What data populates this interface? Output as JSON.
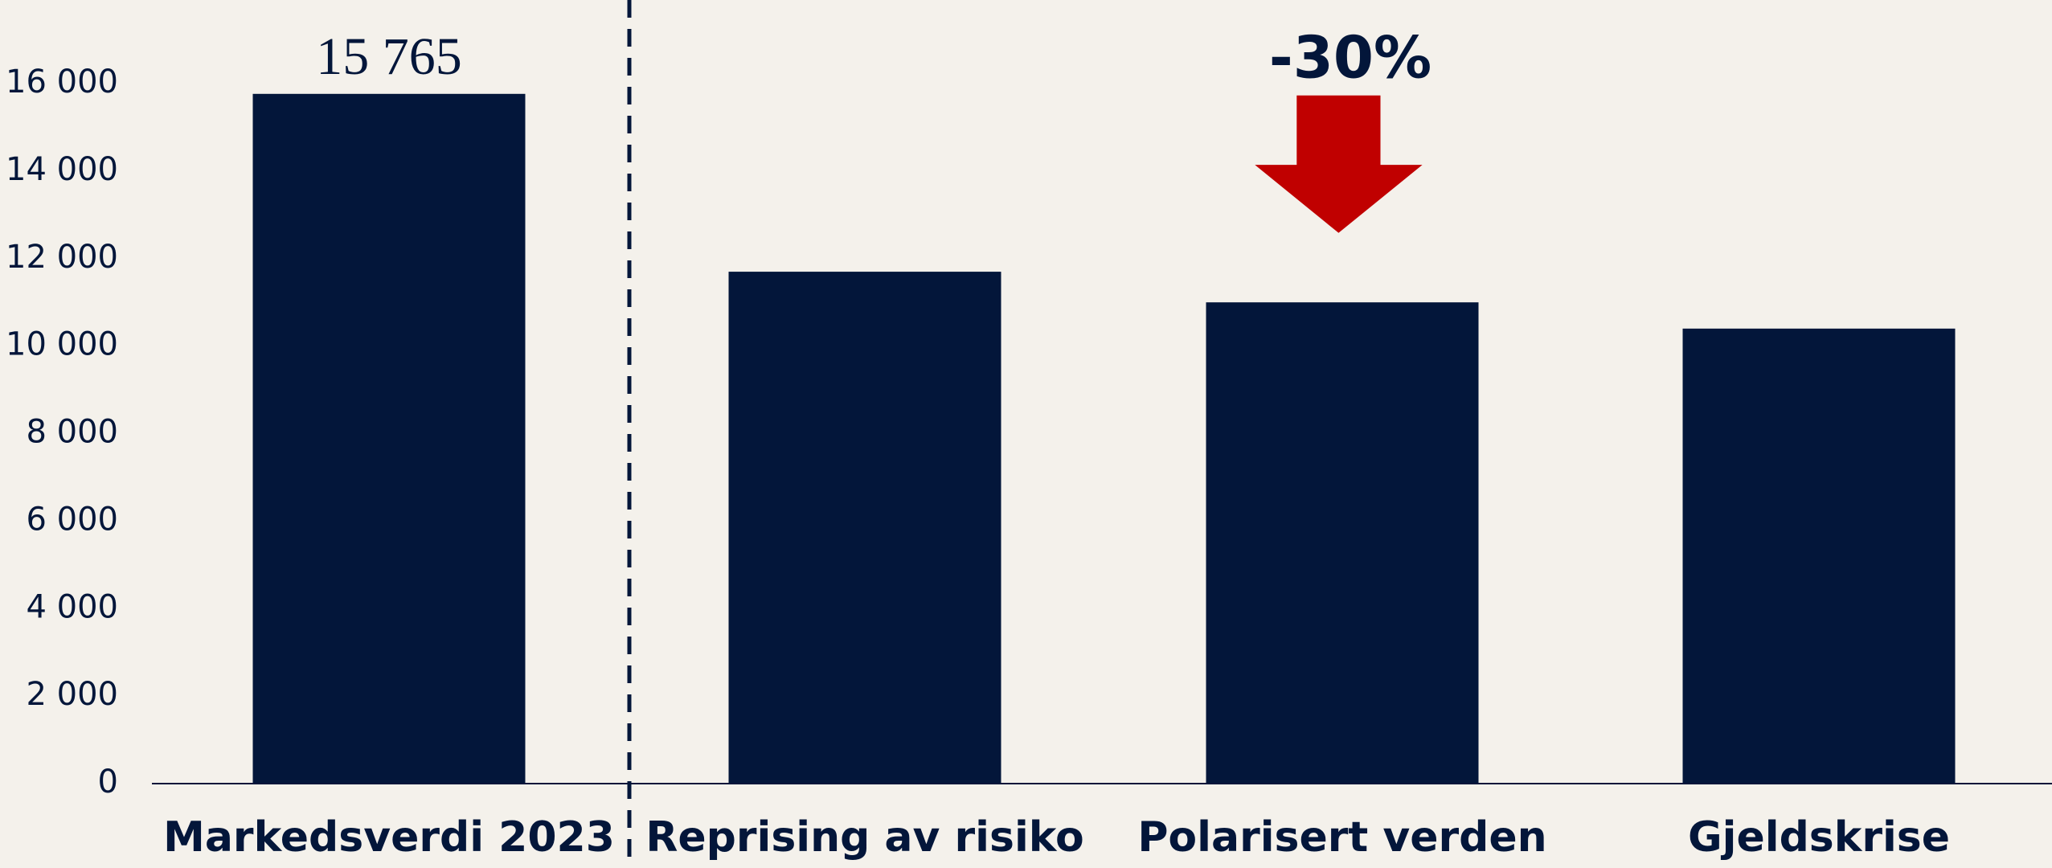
{
  "chart_data": {
    "type": "bar",
    "categories": [
      "Markedsverdi 2023",
      "Reprising av risiko",
      "Polarisert verden",
      "Gjeldskrise"
    ],
    "values": [
      15765,
      11700,
      11000,
      10400
    ],
    "value_labels": [
      "15 765",
      null,
      null,
      null
    ],
    "color": "#03163a",
    "ylim": [
      0,
      16000
    ],
    "yticks": [
      0,
      {
        "value": 2000,
        "label": "2 000"
      },
      {
        "value": 4000,
        "label": "4 000"
      },
      {
        "value": 6000,
        "label": "6 000"
      },
      {
        "value": 8000,
        "label": "8 000"
      },
      {
        "value": 10000,
        "label": "10 000"
      },
      {
        "value": 12000,
        "label": "12 000"
      },
      {
        "value": 14000,
        "label": "14 000"
      },
      {
        "value": 16000,
        "label": "16 000"
      }
    ],
    "grid": false,
    "annotations": [
      {
        "text": "-30%",
        "color": "#c00000"
      }
    ]
  }
}
